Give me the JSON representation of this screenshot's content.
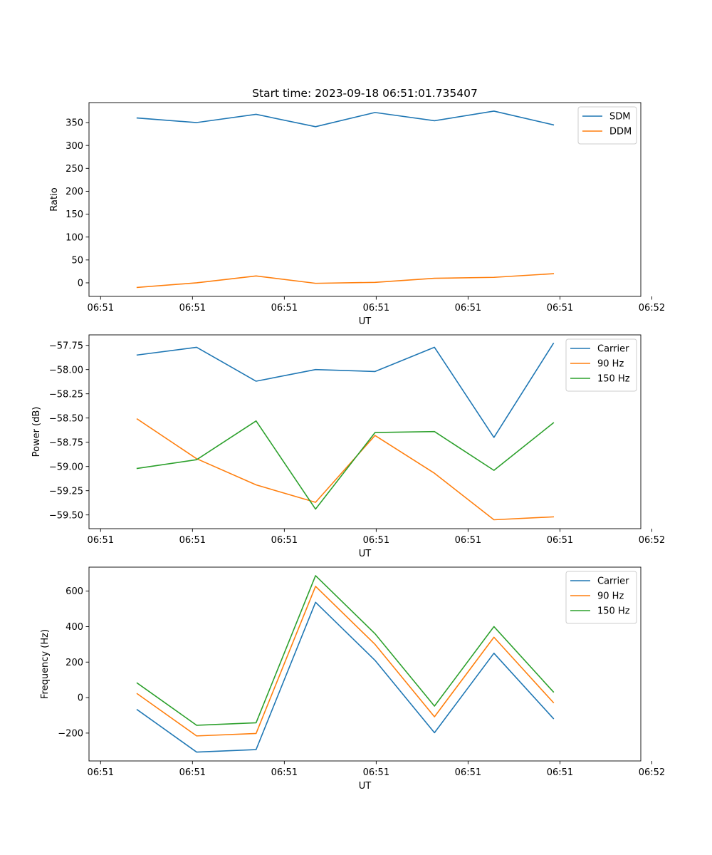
{
  "title": "Start time: 2023-09-18 06:51:01.735407",
  "colors": {
    "blue": "#1f77b4",
    "orange": "#ff7f0e",
    "green": "#2ca02c"
  },
  "chart_data": [
    {
      "type": "line",
      "id": "ratio",
      "title": "Start time: 2023-09-18 06:51:01.735407",
      "xlabel": "UT",
      "ylabel": "Ratio",
      "x": [
        1,
        2,
        3,
        4,
        5,
        6,
        7,
        8
      ],
      "xlim": [
        0.19,
        9.47
      ],
      "xticks": [
        0.385,
        1.93,
        3.475,
        5.02,
        6.565,
        8.11,
        9.655
      ],
      "xtick_labels": [
        "06:51",
        "06:51",
        "06:51",
        "06:51",
        "06:51",
        "06:51",
        "06:52"
      ],
      "ylim": [
        -29.6,
        393.6
      ],
      "yticks": [
        0,
        50,
        100,
        150,
        200,
        250,
        300,
        350
      ],
      "ytick_labels": [
        "0",
        "50",
        "100",
        "150",
        "200",
        "250",
        "300",
        "350"
      ],
      "legend": "upper right",
      "series": [
        {
          "name": "SDM",
          "color": "#1f77b4",
          "values": [
            360,
            350,
            368,
            341,
            372,
            354,
            375,
            345
          ]
        },
        {
          "name": "DDM",
          "color": "#ff7f0e",
          "values": [
            -10,
            0,
            15,
            -1,
            1,
            10,
            12,
            20
          ]
        }
      ]
    },
    {
      "type": "line",
      "id": "power",
      "xlabel": "UT",
      "ylabel": "Power (dB)",
      "x": [
        1,
        2,
        3,
        4,
        5,
        6,
        7,
        8
      ],
      "xlim": [
        0.19,
        9.47
      ],
      "xticks": [
        0.385,
        1.93,
        3.475,
        5.02,
        6.565,
        8.11,
        9.655
      ],
      "xtick_labels": [
        "06:51",
        "06:51",
        "06:51",
        "06:51",
        "06:51",
        "06:51",
        "06:52"
      ],
      "ylim": [
        -59.642,
        -57.642
      ],
      "yticks": [
        -59.5,
        -59.25,
        -59.0,
        -58.75,
        -58.5,
        -58.25,
        -58.0,
        -57.75
      ],
      "ytick_labels": [
        "−59.50",
        "−59.25",
        "−59.00",
        "−58.75",
        "−58.50",
        "−58.25",
        "−58.00",
        "−57.75"
      ],
      "legend": "upper right",
      "series": [
        {
          "name": "Carrier",
          "color": "#1f77b4",
          "values": [
            -57.85,
            -57.77,
            -58.12,
            -58.0,
            -58.02,
            -57.77,
            -58.7,
            -57.73
          ]
        },
        {
          "name": "90 Hz",
          "color": "#ff7f0e",
          "values": [
            -58.51,
            -58.92,
            -59.19,
            -59.37,
            -58.68,
            -59.07,
            -59.55,
            -59.52
          ]
        },
        {
          "name": "150 Hz",
          "color": "#2ca02c",
          "values": [
            -59.02,
            -58.93,
            -58.53,
            -59.44,
            -58.65,
            -58.64,
            -59.04,
            -58.55
          ]
        }
      ]
    },
    {
      "type": "line",
      "id": "frequency",
      "xlabel": "UT",
      "ylabel": "Frequency (Hz)",
      "x": [
        1,
        2,
        3,
        4,
        5,
        6,
        7,
        8
      ],
      "xlim": [
        0.19,
        9.47
      ],
      "xticks": [
        0.385,
        1.93,
        3.475,
        5.02,
        6.565,
        8.11,
        9.655
      ],
      "xtick_labels": [
        "06:51",
        "06:51",
        "06:51",
        "06:51",
        "06:51",
        "06:51",
        "06:52"
      ],
      "ylim": [
        -357,
        735
      ],
      "yticks": [
        -200,
        0,
        200,
        400,
        600
      ],
      "ytick_labels": [
        "−200",
        "0",
        "200",
        "400",
        "600"
      ],
      "legend": "upper right",
      "series": [
        {
          "name": "Carrier",
          "color": "#1f77b4",
          "values": [
            -68,
            -307,
            -293,
            537,
            210,
            -198,
            250,
            -118
          ]
        },
        {
          "name": "90 Hz",
          "color": "#ff7f0e",
          "values": [
            22,
            -216,
            -202,
            627,
            300,
            -108,
            340,
            -28
          ]
        },
        {
          "name": "150 Hz",
          "color": "#2ca02c",
          "values": [
            82,
            -156,
            -142,
            687,
            360,
            -48,
            400,
            32
          ]
        }
      ]
    }
  ]
}
